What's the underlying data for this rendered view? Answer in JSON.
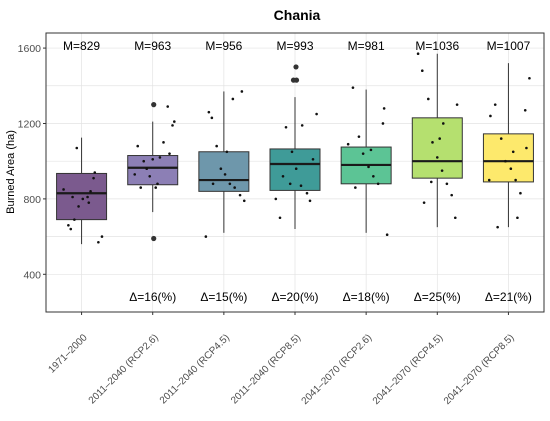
{
  "chart_data": {
    "type": "box",
    "title": "Chania",
    "ylabel": "Burned Area (ha)",
    "ylim": [
      200,
      1680
    ],
    "yticks": [
      400,
      800,
      1200,
      1600
    ],
    "grid": true,
    "box_stats_order": [
      "min",
      "q1",
      "median",
      "q3",
      "max"
    ],
    "categories": [
      "1971–2000",
      "2011–2040 (RCP2.6)",
      "2011–2040 (RCP4.5)",
      "2011–2040 (RCP8.5)",
      "2041–2070 (RCP2.6)",
      "2041–2070 (RCP4.5)",
      "2041–2070 (RCP8.5)"
    ],
    "colors": [
      "#7b5a8e",
      "#8c7fb5",
      "#6e97ab",
      "#3f9b98",
      "#5cc495",
      "#b5e06f",
      "#fde96c"
    ],
    "boxes": [
      [
        560,
        690,
        830,
        935,
        1125
      ],
      [
        730,
        875,
        965,
        1030,
        1210
      ],
      [
        620,
        840,
        900,
        1050,
        1370
      ],
      [
        640,
        845,
        985,
        1065,
        1340
      ],
      [
        620,
        880,
        980,
        1075,
        1380
      ],
      [
        650,
        910,
        1000,
        1230,
        1570
      ],
      [
        650,
        890,
        1000,
        1145,
        1520
      ]
    ],
    "outliers": [
      [],
      [
        [
          0.02,
          1300
        ],
        [
          0.02,
          590
        ]
      ],
      [],
      [
        [
          0.02,
          1500
        ],
        [
          -0.03,
          1430
        ],
        [
          0.03,
          1430
        ]
      ],
      [],
      [],
      []
    ],
    "points": [
      [
        [
          -0.22,
          660
        ],
        [
          -0.18,
          640
        ],
        [
          -0.12,
          690
        ],
        [
          -0.05,
          760
        ],
        [
          0.02,
          800
        ],
        [
          0.1,
          810
        ],
        [
          0.15,
          840
        ],
        [
          0.2,
          910
        ],
        [
          0.28,
          570
        ],
        [
          0.34,
          600
        ],
        [
          -0.3,
          850
        ],
        [
          -0.08,
          1070
        ],
        [
          0.12,
          780
        ],
        [
          0.22,
          940
        ],
        [
          -0.15,
          810
        ]
      ],
      [
        [
          -0.25,
          1080
        ],
        [
          -0.15,
          1000
        ],
        [
          -0.05,
          920
        ],
        [
          0.05,
          860
        ],
        [
          0.12,
          1020
        ],
        [
          0.18,
          1100
        ],
        [
          0.28,
          1040
        ],
        [
          0.33,
          1190
        ],
        [
          -0.3,
          930
        ],
        [
          0.0,
          1010
        ],
        [
          0.08,
          880
        ],
        [
          0.25,
          1290
        ],
        [
          -0.1,
          960
        ],
        [
          0.36,
          1210
        ],
        [
          -0.2,
          860
        ]
      ],
      [
        [
          -0.25,
          1260
        ],
        [
          -0.2,
          1230
        ],
        [
          -0.12,
          1080
        ],
        [
          -0.05,
          960
        ],
        [
          0.02,
          930
        ],
        [
          0.1,
          880
        ],
        [
          0.18,
          860
        ],
        [
          0.27,
          820
        ],
        [
          0.34,
          790
        ],
        [
          -0.3,
          600
        ],
        [
          0.15,
          1330
        ],
        [
          -0.18,
          880
        ],
        [
          0.3,
          1370
        ],
        [
          0.05,
          1050
        ]
      ],
      [
        [
          -0.32,
          800
        ],
        [
          -0.25,
          700
        ],
        [
          -0.15,
          1180
        ],
        [
          -0.05,
          1050
        ],
        [
          0.02,
          960
        ],
        [
          0.1,
          870
        ],
        [
          0.2,
          830
        ],
        [
          0.3,
          1010
        ],
        [
          0.36,
          1250
        ],
        [
          -0.2,
          920
        ],
        [
          0.12,
          1190
        ],
        [
          -0.08,
          880
        ],
        [
          0.25,
          790
        ]
      ],
      [
        [
          -0.3,
          1090
        ],
        [
          -0.22,
          1390
        ],
        [
          -0.12,
          1130
        ],
        [
          -0.05,
          1040
        ],
        [
          0.04,
          970
        ],
        [
          0.12,
          920
        ],
        [
          0.2,
          880
        ],
        [
          0.28,
          1200
        ],
        [
          0.35,
          610
        ],
        [
          -0.18,
          860
        ],
        [
          0.08,
          1060
        ],
        [
          0.3,
          1280
        ]
      ],
      [
        [
          -0.32,
          1570
        ],
        [
          -0.25,
          1480
        ],
        [
          -0.15,
          1330
        ],
        [
          -0.08,
          1100
        ],
        [
          0.0,
          1020
        ],
        [
          0.08,
          950
        ],
        [
          0.16,
          880
        ],
        [
          0.24,
          820
        ],
        [
          0.33,
          1300
        ],
        [
          -0.22,
          780
        ],
        [
          0.1,
          1200
        ],
        [
          -0.1,
          890
        ],
        [
          0.3,
          700
        ],
        [
          0.04,
          1120
        ]
      ],
      [
        [
          -0.3,
          1240
        ],
        [
          -0.22,
          1300
        ],
        [
          -0.12,
          1120
        ],
        [
          -0.05,
          1000
        ],
        [
          0.04,
          960
        ],
        [
          0.12,
          900
        ],
        [
          0.2,
          830
        ],
        [
          0.28,
          1270
        ],
        [
          0.35,
          1440
        ],
        [
          -0.18,
          650
        ],
        [
          0.08,
          1050
        ],
        [
          0.3,
          1070
        ],
        [
          -0.32,
          900
        ],
        [
          0.15,
          700
        ]
      ]
    ],
    "annotations_top": [
      "M=829",
      "M=963",
      "M=956",
      "M=993",
      "M=981",
      "M=1036",
      "M=1007"
    ],
    "annotations_bottom": [
      "",
      "Δ=16(%)",
      "Δ=15(%)",
      "Δ=20(%)",
      "Δ=18(%)",
      "Δ=25(%)",
      "Δ=21(%)"
    ]
  }
}
